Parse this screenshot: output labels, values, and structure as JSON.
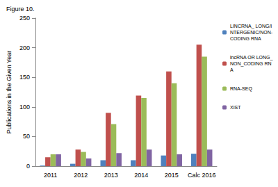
{
  "chart_data": {
    "type": "bar",
    "title": "Figure 10.",
    "y_label": "Publications in the Given Year",
    "categories": [
      "2011",
      "2012",
      "2013",
      "2014",
      "2015",
      "Calc 2016"
    ],
    "series": [
      {
        "name": "LINCRNA_ LONG/INTERGENIC/NON-CODING RNA",
        "color": "#4f81bd",
        "values": [
          1,
          4,
          10,
          10,
          18,
          21
        ]
      },
      {
        "name": "lncRNA OR LONG_NON_CODING RNA",
        "color": "#c0504d",
        "values": [
          15,
          28,
          90,
          119,
          160,
          205
        ]
      },
      {
        "name": "RNA-SEQ",
        "color": "#9bbb59",
        "values": [
          20,
          24,
          71,
          115,
          140,
          185
        ]
      },
      {
        "name": "XIST",
        "color": "#8064a2",
        "values": [
          20,
          13,
          22,
          28,
          20,
          28
        ]
      }
    ],
    "ylim": [
      0,
      250
    ],
    "yticks": [
      0,
      50,
      100,
      150,
      200,
      250
    ],
    "grid": false,
    "legend": "right"
  }
}
